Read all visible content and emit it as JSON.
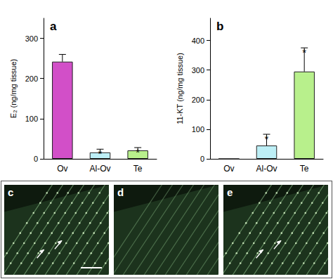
{
  "chart_data": [
    {
      "type": "bar",
      "title": "a",
      "categories": [
        "Ov",
        "Al-Ov",
        "Te"
      ],
      "values": [
        242,
        16,
        21
      ],
      "errors": [
        18,
        8,
        7
      ],
      "colors": [
        "#d24fc8",
        "#bdeff6",
        "#b8f08c"
      ],
      "y_label": "E₂ (ng/mg tissue)",
      "ylim": [
        0,
        350
      ],
      "yticks": [
        0,
        100,
        200,
        300
      ],
      "annotations": [
        {
          "category": "Al-Ov",
          "text": "*"
        },
        {
          "category": "Te",
          "text": "*"
        }
      ]
    },
    {
      "type": "bar",
      "title": "b",
      "categories": [
        "Ov",
        "Al-Ov",
        "Te"
      ],
      "values": [
        0,
        45,
        295
      ],
      "errors": [
        0,
        38,
        80
      ],
      "colors": [
        "#d24fc8",
        "#bdeff6",
        "#b8f08c"
      ],
      "y_label": "11-KT (ng/mg tissue)",
      "ylim": [
        0,
        475
      ],
      "yticks": [
        0,
        100,
        200,
        300,
        400
      ],
      "annotations": [
        {
          "category": "Al-Ov",
          "text": "*"
        },
        {
          "category": "Te",
          "text": "*"
        }
      ]
    }
  ],
  "image_panels": {
    "labels": [
      "c",
      "d",
      "e"
    ]
  }
}
